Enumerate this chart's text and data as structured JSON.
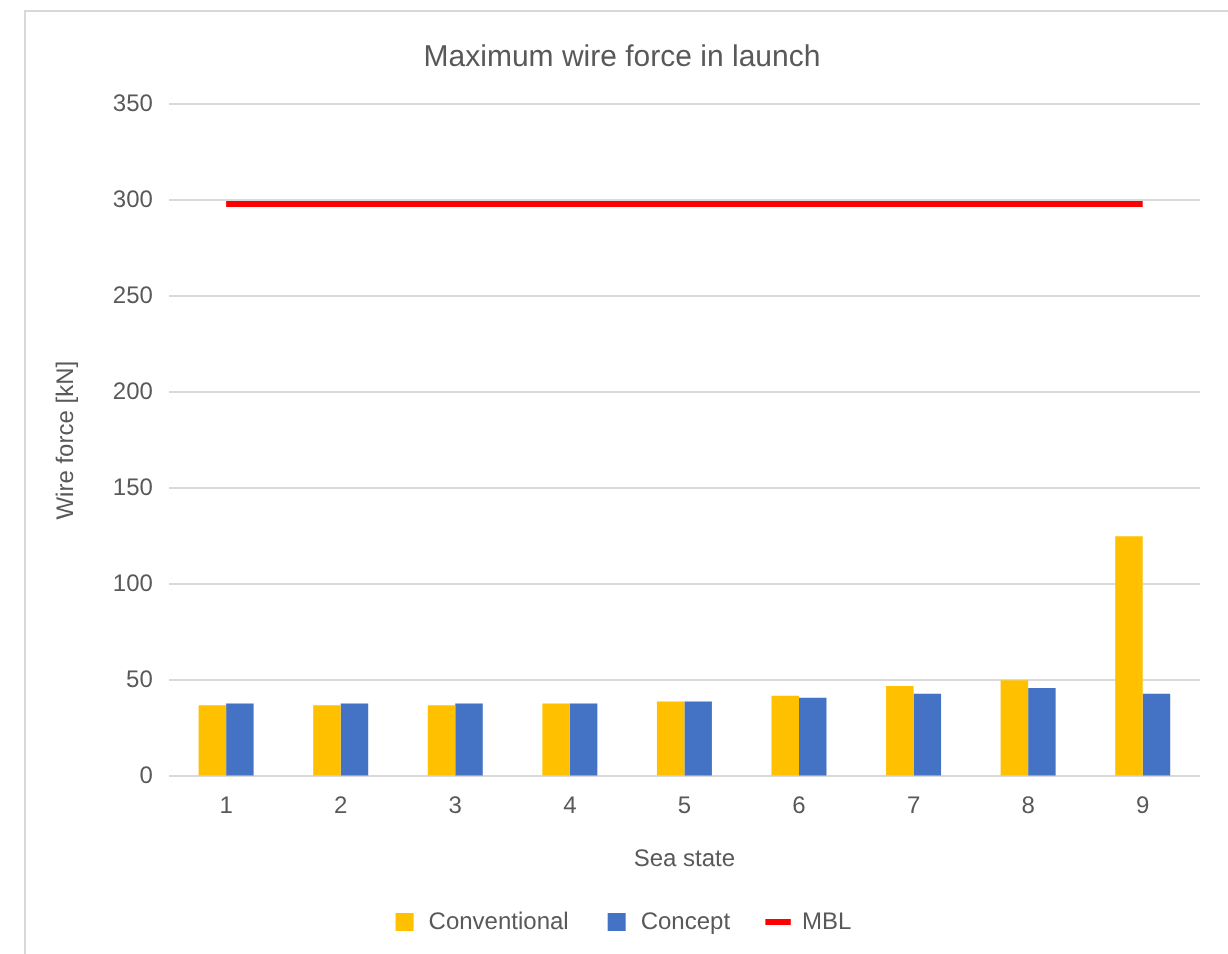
{
  "chart_data": {
    "type": "bar",
    "title": "Maximum wire force in launch",
    "xlabel": "Sea state",
    "ylabel": "Wire force [kN]",
    "categories": [
      "1",
      "2",
      "3",
      "4",
      "5",
      "6",
      "7",
      "8",
      "9"
    ],
    "series": [
      {
        "name": "Conventional",
        "color": "#ffc000",
        "values": [
          37,
          37,
          37,
          38,
          39,
          42,
          47,
          50,
          125
        ]
      },
      {
        "name": "Concept",
        "color": "#4472c4",
        "values": [
          38,
          38,
          38,
          38,
          39,
          41,
          43,
          46,
          43
        ]
      },
      {
        "name": "MBL",
        "type": "line",
        "color": "#ff0000",
        "values": [
          298,
          298,
          298,
          298,
          298,
          298,
          298,
          298,
          298
        ]
      }
    ],
    "ylim": [
      0,
      350
    ],
    "yticks": [
      0,
      50,
      100,
      150,
      200,
      250,
      300,
      350
    ],
    "grid": "y",
    "legend": "bottom",
    "marker": "none",
    "line_style": "solid"
  }
}
